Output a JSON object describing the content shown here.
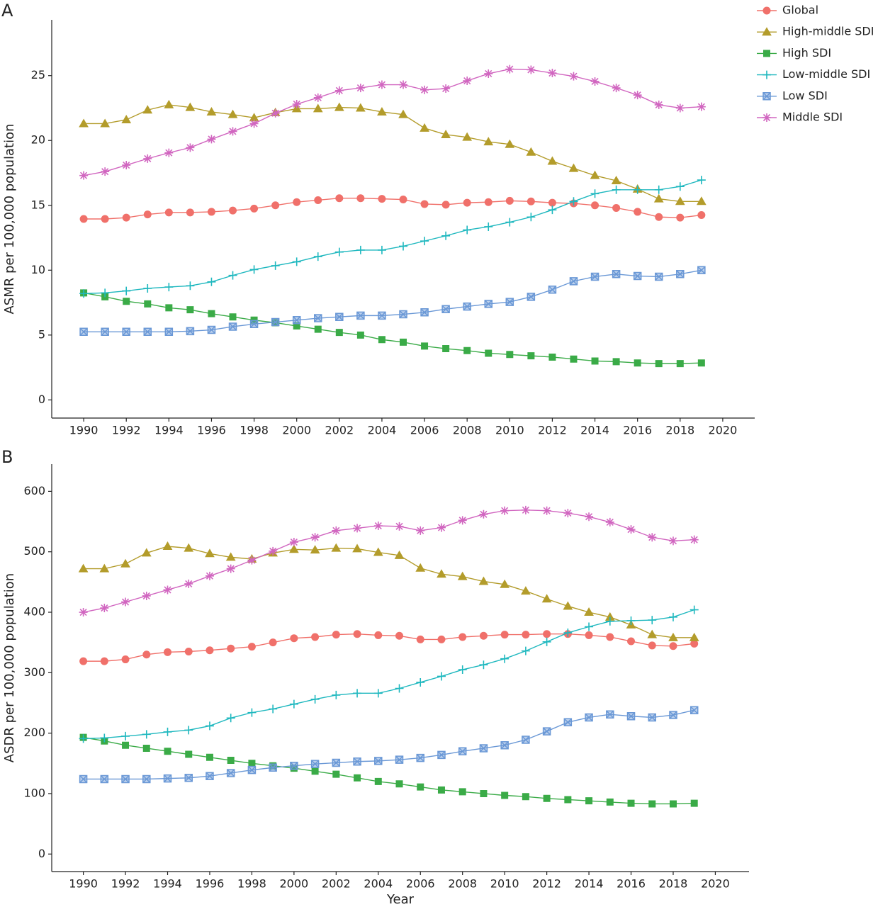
{
  "chart_data": [
    {
      "type": "line",
      "label": "A",
      "y_label": "ASMR per 100,000 population",
      "x": [
        1990,
        1991,
        1992,
        1993,
        1994,
        1995,
        1996,
        1997,
        1998,
        1999,
        2000,
        2001,
        2002,
        2003,
        2004,
        2005,
        2006,
        2007,
        2008,
        2009,
        2010,
        2011,
        2012,
        2013,
        2014,
        2015,
        2016,
        2017,
        2018,
        2019
      ],
      "xlim": [
        1988.5,
        2021.5
      ],
      "xticks": [
        1990,
        1992,
        1994,
        1996,
        1998,
        2000,
        2002,
        2004,
        2006,
        2008,
        2010,
        2012,
        2014,
        2016,
        2018,
        2020
      ],
      "ylim": [
        -1.4,
        29.3
      ],
      "yticks": [
        0,
        5,
        10,
        15,
        20,
        25
      ],
      "legend": "top-right",
      "series": [
        {
          "name": "Global",
          "color": "#f0706a",
          "marker": "circle",
          "values": [
            13.95,
            13.95,
            14.05,
            14.3,
            14.45,
            14.45,
            14.5,
            14.6,
            14.75,
            15.0,
            15.25,
            15.4,
            15.55,
            15.55,
            15.5,
            15.45,
            15.1,
            15.05,
            15.2,
            15.25,
            15.35,
            15.3,
            15.2,
            15.15,
            15.0,
            14.8,
            14.5,
            14.1,
            14.05,
            14.25
          ]
        },
        {
          "name": "High-middle SDI",
          "color": "#b39c2b",
          "marker": "triangle",
          "values": [
            21.3,
            21.3,
            21.6,
            22.35,
            22.75,
            22.55,
            22.2,
            22.0,
            21.75,
            22.15,
            22.45,
            22.45,
            22.55,
            22.5,
            22.2,
            22.0,
            20.95,
            20.45,
            20.25,
            19.9,
            19.7,
            19.1,
            18.4,
            17.85,
            17.3,
            16.9,
            16.25,
            15.5,
            15.3,
            15.3
          ]
        },
        {
          "name": "High SDI",
          "color": "#3aab47",
          "marker": "square",
          "values": [
            8.25,
            7.95,
            7.6,
            7.4,
            7.1,
            6.95,
            6.65,
            6.4,
            6.15,
            5.95,
            5.7,
            5.45,
            5.2,
            5.0,
            4.65,
            4.45,
            4.15,
            3.95,
            3.8,
            3.6,
            3.5,
            3.4,
            3.3,
            3.15,
            3.0,
            2.95,
            2.85,
            2.8,
            2.8,
            2.85
          ]
        },
        {
          "name": "Low-middle SDI",
          "color": "#1fb8bf",
          "marker": "plus",
          "values": [
            8.2,
            8.25,
            8.4,
            8.6,
            8.7,
            8.8,
            9.1,
            9.6,
            10.05,
            10.35,
            10.65,
            11.05,
            11.4,
            11.55,
            11.55,
            11.85,
            12.25,
            12.65,
            13.1,
            13.35,
            13.7,
            14.1,
            14.65,
            15.3,
            15.9,
            16.2,
            16.2,
            16.2,
            16.45,
            16.95
          ]
        },
        {
          "name": "Low SDI",
          "color": "#6a98d6",
          "marker": "boxed-cross",
          "values": [
            5.25,
            5.25,
            5.25,
            5.25,
            5.25,
            5.3,
            5.4,
            5.65,
            5.85,
            6.0,
            6.15,
            6.3,
            6.4,
            6.5,
            6.5,
            6.6,
            6.75,
            7.0,
            7.2,
            7.4,
            7.55,
            7.95,
            8.5,
            9.15,
            9.5,
            9.7,
            9.55,
            9.5,
            9.7,
            10.0
          ]
        },
        {
          "name": "Middle SDI",
          "color": "#d166c0",
          "marker": "asterisk",
          "values": [
            17.3,
            17.6,
            18.1,
            18.6,
            19.05,
            19.45,
            20.1,
            20.7,
            21.3,
            22.1,
            22.8,
            23.3,
            23.85,
            24.05,
            24.3,
            24.3,
            23.9,
            24.0,
            24.6,
            25.15,
            25.5,
            25.45,
            25.2,
            24.95,
            24.55,
            24.05,
            23.5,
            22.75,
            22.5,
            22.6
          ]
        }
      ]
    },
    {
      "type": "line",
      "label": "B",
      "x_label": "Year",
      "y_label": "ASDR per 100,000 population",
      "x": [
        1990,
        1991,
        1992,
        1993,
        1994,
        1995,
        1996,
        1997,
        1998,
        1999,
        2000,
        2001,
        2002,
        2003,
        2004,
        2005,
        2006,
        2007,
        2008,
        2009,
        2010,
        2011,
        2012,
        2013,
        2014,
        2015,
        2016,
        2017,
        2018,
        2019
      ],
      "xlim": [
        1988.5,
        2021.6
      ],
      "xticks": [
        1990,
        1992,
        1994,
        1996,
        1998,
        2000,
        2002,
        2004,
        2006,
        2008,
        2010,
        2012,
        2014,
        2016,
        2018,
        2020
      ],
      "ylim": [
        -29,
        645
      ],
      "yticks": [
        0,
        100,
        200,
        300,
        400,
        500,
        600
      ],
      "series": [
        {
          "name": "Global",
          "color": "#f0706a",
          "marker": "circle",
          "values": [
            319,
            319,
            322,
            330,
            334,
            335,
            337,
            340,
            343,
            350,
            357,
            359,
            363,
            364,
            362,
            361,
            355,
            355,
            359,
            361,
            363,
            363,
            364,
            364,
            362,
            359,
            352,
            345,
            344,
            348
          ]
        },
        {
          "name": "High-middle SDI",
          "color": "#b39c2b",
          "marker": "triangle",
          "values": [
            472,
            472,
            480,
            498,
            509,
            506,
            497,
            491,
            488,
            498,
            504,
            503,
            506,
            505,
            499,
            494,
            473,
            463,
            459,
            451,
            446,
            435,
            422,
            410,
            400,
            392,
            379,
            363,
            358,
            358
          ]
        },
        {
          "name": "High SDI",
          "color": "#3aab47",
          "marker": "square",
          "values": [
            193,
            187,
            180,
            175,
            170,
            165,
            160,
            155,
            150,
            146,
            142,
            137,
            132,
            126,
            120,
            116,
            111,
            106,
            103,
            100,
            97,
            95,
            92,
            90,
            88,
            86,
            84,
            83,
            83,
            84
          ]
        },
        {
          "name": "Low-middle SDI",
          "color": "#1fb8bf",
          "marker": "plus",
          "values": [
            191,
            192,
            195,
            198,
            202,
            205,
            212,
            225,
            234,
            240,
            248,
            256,
            263,
            266,
            266,
            274,
            284,
            294,
            305,
            313,
            323,
            336,
            351,
            366,
            376,
            385,
            386,
            387,
            392,
            404
          ]
        },
        {
          "name": "Low SDI",
          "color": "#6a98d6",
          "marker": "boxed-cross",
          "values": [
            124,
            124,
            124,
            124,
            125,
            126,
            129,
            134,
            139,
            143,
            146,
            149,
            151,
            153,
            154,
            156,
            159,
            164,
            170,
            175,
            180,
            189,
            203,
            218,
            226,
            231,
            228,
            226,
            230,
            238
          ]
        },
        {
          "name": "Middle SDI",
          "color": "#d166c0",
          "marker": "asterisk",
          "values": [
            400,
            407,
            417,
            427,
            437,
            447,
            460,
            472,
            486,
            501,
            516,
            524,
            535,
            539,
            543,
            542,
            535,
            540,
            552,
            562,
            568,
            569,
            568,
            564,
            558,
            549,
            537,
            524,
            518,
            520
          ]
        }
      ]
    }
  ]
}
